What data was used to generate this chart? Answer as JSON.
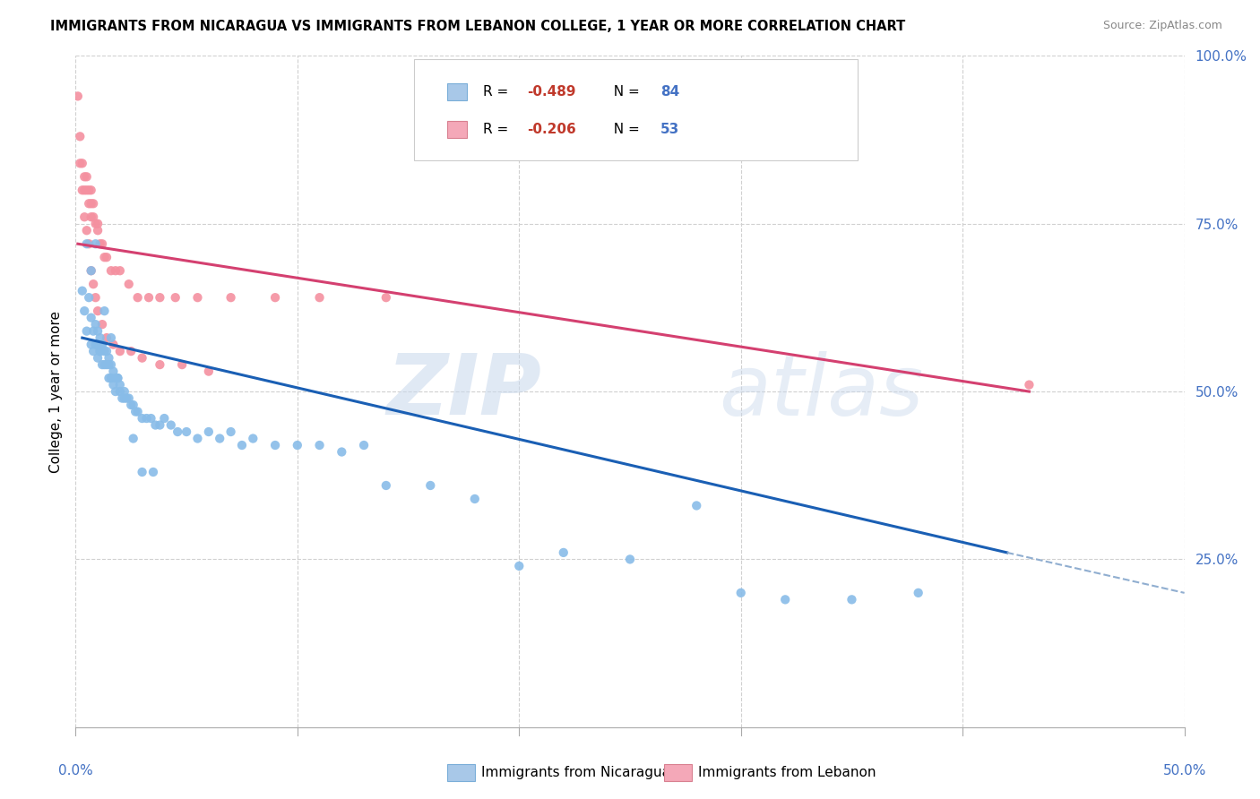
{
  "title": "IMMIGRANTS FROM NICARAGUA VS IMMIGRANTS FROM LEBANON COLLEGE, 1 YEAR OR MORE CORRELATION CHART",
  "source": "Source: ZipAtlas.com",
  "ylabel": "College, 1 year or more",
  "legend_entry1_r": "R = -0.489",
  "legend_entry1_n": "N = 84",
  "legend_entry2_r": "R = -0.206",
  "legend_entry2_n": "N = 53",
  "legend_color1": "#a8c8e8",
  "legend_color2": "#f4a8b8",
  "nicaragua_color": "#88bce8",
  "lebanon_color": "#f490a0",
  "trend_nicaragua_color": "#1a5fb4",
  "trend_lebanon_color": "#d44070",
  "trend_ext_color": "#90aed0",
  "watermark_zip": "ZIP",
  "watermark_atlas": "atlas",
  "xlim": [
    0.0,
    0.5
  ],
  "ylim": [
    0.0,
    1.0
  ],
  "right_axis_color": "#4472c4",
  "bottom_axis_color": "#4472c4",
  "grid_color": "#d0d0d0",
  "background_color": "#ffffff",
  "nicaragua_x": [
    0.004,
    0.005,
    0.006,
    0.007,
    0.007,
    0.008,
    0.008,
    0.009,
    0.009,
    0.01,
    0.01,
    0.01,
    0.011,
    0.011,
    0.012,
    0.012,
    0.012,
    0.013,
    0.013,
    0.014,
    0.014,
    0.015,
    0.015,
    0.015,
    0.016,
    0.016,
    0.017,
    0.017,
    0.018,
    0.018,
    0.019,
    0.02,
    0.02,
    0.021,
    0.022,
    0.023,
    0.024,
    0.025,
    0.026,
    0.027,
    0.028,
    0.03,
    0.032,
    0.034,
    0.036,
    0.038,
    0.04,
    0.043,
    0.046,
    0.05,
    0.055,
    0.06,
    0.065,
    0.07,
    0.075,
    0.08,
    0.09,
    0.1,
    0.11,
    0.12,
    0.13,
    0.14,
    0.16,
    0.18,
    0.2,
    0.22,
    0.25,
    0.28,
    0.3,
    0.32,
    0.35,
    0.38,
    0.003,
    0.005,
    0.007,
    0.009,
    0.011,
    0.013,
    0.016,
    0.019,
    0.022,
    0.026,
    0.03,
    0.035
  ],
  "nicaragua_y": [
    0.62,
    0.59,
    0.64,
    0.57,
    0.61,
    0.56,
    0.59,
    0.6,
    0.57,
    0.57,
    0.55,
    0.59,
    0.56,
    0.58,
    0.57,
    0.54,
    0.57,
    0.56,
    0.54,
    0.56,
    0.54,
    0.55,
    0.54,
    0.52,
    0.54,
    0.52,
    0.53,
    0.51,
    0.52,
    0.5,
    0.52,
    0.51,
    0.5,
    0.49,
    0.5,
    0.49,
    0.49,
    0.48,
    0.48,
    0.47,
    0.47,
    0.46,
    0.46,
    0.46,
    0.45,
    0.45,
    0.46,
    0.45,
    0.44,
    0.44,
    0.43,
    0.44,
    0.43,
    0.44,
    0.42,
    0.43,
    0.42,
    0.42,
    0.42,
    0.41,
    0.42,
    0.36,
    0.36,
    0.34,
    0.24,
    0.26,
    0.25,
    0.33,
    0.2,
    0.19,
    0.19,
    0.2,
    0.65,
    0.72,
    0.68,
    0.72,
    0.56,
    0.62,
    0.58,
    0.52,
    0.49,
    0.43,
    0.38,
    0.38
  ],
  "lebanon_x": [
    0.001,
    0.002,
    0.003,
    0.004,
    0.004,
    0.005,
    0.005,
    0.006,
    0.006,
    0.007,
    0.007,
    0.007,
    0.008,
    0.008,
    0.009,
    0.01,
    0.01,
    0.011,
    0.012,
    0.013,
    0.014,
    0.016,
    0.018,
    0.02,
    0.024,
    0.028,
    0.033,
    0.038,
    0.045,
    0.055,
    0.07,
    0.09,
    0.11,
    0.14,
    0.002,
    0.003,
    0.004,
    0.005,
    0.006,
    0.007,
    0.008,
    0.009,
    0.01,
    0.012,
    0.014,
    0.017,
    0.02,
    0.025,
    0.03,
    0.038,
    0.048,
    0.06,
    0.43
  ],
  "lebanon_y": [
    0.94,
    0.88,
    0.84,
    0.82,
    0.8,
    0.8,
    0.82,
    0.8,
    0.78,
    0.78,
    0.8,
    0.76,
    0.78,
    0.76,
    0.75,
    0.75,
    0.74,
    0.72,
    0.72,
    0.7,
    0.7,
    0.68,
    0.68,
    0.68,
    0.66,
    0.64,
    0.64,
    0.64,
    0.64,
    0.64,
    0.64,
    0.64,
    0.64,
    0.64,
    0.84,
    0.8,
    0.76,
    0.74,
    0.72,
    0.68,
    0.66,
    0.64,
    0.62,
    0.6,
    0.58,
    0.57,
    0.56,
    0.56,
    0.55,
    0.54,
    0.54,
    0.53,
    0.51
  ],
  "trend_nic_x0": 0.003,
  "trend_nic_x1": 0.42,
  "trend_nic_y0": 0.58,
  "trend_nic_y1": 0.26,
  "trend_nic_ext_x1": 0.5,
  "trend_nic_ext_y1": 0.2,
  "trend_leb_x0": 0.001,
  "trend_leb_x1": 0.43,
  "trend_leb_y0": 0.72,
  "trend_leb_y1": 0.5
}
